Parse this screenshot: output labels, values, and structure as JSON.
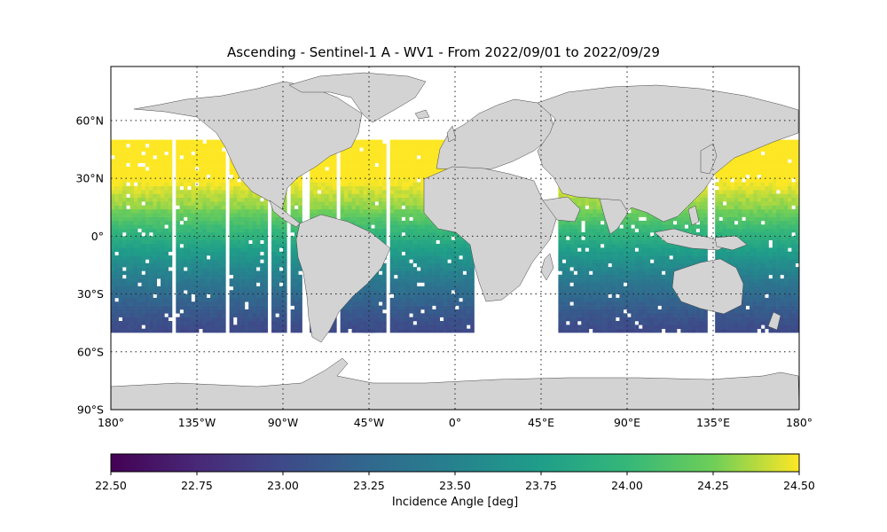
{
  "title": "Ascending - Sentinel-1 A - WV1 - From 2022/09/01 to 2022/09/29",
  "map": {
    "projection": "PlateCarree",
    "lon_range": [
      -180,
      180
    ],
    "lat_range": [
      -90,
      90
    ],
    "land_color": "#d3d3d3",
    "coastline_color": "#333333",
    "gridlines": {
      "style": "dotted",
      "lons": [
        -135,
        -90,
        -45,
        0,
        45,
        90,
        135,
        180
      ],
      "lats": [
        -60,
        -30,
        0,
        30,
        60
      ]
    },
    "lat_tick_labels": [
      "60°N",
      "30°N",
      "0°",
      "30°S",
      "60°S",
      "90°S"
    ],
    "lon_tick_labels": [
      "180°",
      "135°W",
      "90°W",
      "45°W",
      "0°",
      "45°E",
      "90°E",
      "135°E",
      "180°"
    ]
  },
  "chart_data": {
    "type": "heatmap",
    "title": "Ascending - Sentinel-1 A - WV1 - From 2022/09/01 to 2022/09/29",
    "colormap": "viridis",
    "value_range": [
      22.5,
      24.5
    ],
    "value_label": "Incidence Angle [deg]",
    "data_lat_extent": [
      -50,
      50
    ],
    "grid_resolution_deg": 2,
    "coverage_lon_bands": [
      [
        -180,
        -148
      ],
      [
        -146,
        -140
      ],
      [
        -140,
        -130
      ],
      [
        -130,
        -120
      ],
      [
        -118,
        -108
      ],
      [
        -108,
        -98
      ],
      [
        -96,
        -88
      ],
      [
        -86,
        -80
      ],
      [
        -76,
        -62
      ],
      [
        -60,
        -42
      ],
      [
        -48,
        -36
      ],
      [
        -34,
        0
      ],
      [
        0,
        10
      ],
      [
        54,
        70
      ],
      [
        70,
        92
      ],
      [
        92,
        110
      ],
      [
        110,
        132
      ],
      [
        136,
        144
      ],
      [
        144,
        162
      ],
      [
        162,
        180
      ]
    ],
    "value_model": "incidence angle decreasing from ~24.3 deg near 15°N to ~23.0 deg at 50°S"
  },
  "colorbar": {
    "ticks": [
      "22.50",
      "22.75",
      "23.00",
      "23.25",
      "23.50",
      "23.75",
      "24.00",
      "24.25",
      "24.50"
    ],
    "label": "Incidence Angle [deg]"
  }
}
